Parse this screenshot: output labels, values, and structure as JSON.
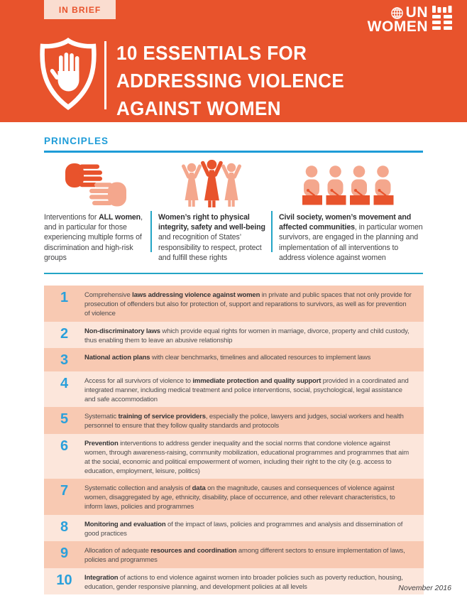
{
  "colors": {
    "orange": "#E8532C",
    "salmon": "#F4A78D",
    "tab_background": "#FADDD0",
    "row_dark": "#F8C9B2",
    "row_light": "#FCE6DB",
    "blue": "#1E9CD8",
    "teal": "#23A5C6",
    "body_text": "#4D4D4F"
  },
  "header": {
    "tab_label": "IN BRIEF",
    "title_lines": [
      "10 ESSENTIALS FOR",
      "ADDRESSING VIOLENCE",
      "AGAINST WOMEN"
    ],
    "logo_line1": "UN",
    "logo_line2": "WOMEN"
  },
  "principles": {
    "heading": "PRINCIPLES",
    "items": [
      {
        "icon": "hands-icon",
        "parts": [
          {
            "t": "Interventions for "
          },
          {
            "t": "ALL women",
            "b": true
          },
          {
            "t": ", and in particular for those experiencing multiple forms of discrimination and high-risk groups"
          }
        ]
      },
      {
        "icon": "raised-arms-icon",
        "parts": [
          {
            "t": "Women’s right to physical integrity, safety and well-being",
            "b": true
          },
          {
            "t": " and recognition of States’ responsibility to respect, protect and fulfill these rights"
          }
        ]
      },
      {
        "icon": "panel-icon",
        "parts": [
          {
            "t": "Civil society, women’s movement and affected communities",
            "b": true
          },
          {
            "t": ", in particular women survivors, are engaged in the planning and implementation of all interventions to address violence against women"
          }
        ]
      }
    ]
  },
  "essentials": [
    {
      "number": "1",
      "parts": [
        {
          "t": "Comprehensive "
        },
        {
          "t": "laws addressing violence against women",
          "b": true
        },
        {
          "t": " in private and public spaces that not only provide for prosecution of offenders but also for protection of, support and reparations to survivors, as well as for prevention of violence"
        }
      ]
    },
    {
      "number": "2",
      "parts": [
        {
          "t": "Non-discriminatory laws",
          "b": true
        },
        {
          "t": " which provide equal rights for women in marriage, divorce, property and child custody, thus enabling them to leave an abusive relationship"
        }
      ]
    },
    {
      "number": "3",
      "parts": [
        {
          "t": "National action plans",
          "b": true
        },
        {
          "t": " with clear benchmarks, timelines and allocated resources to implement laws"
        }
      ]
    },
    {
      "number": "4",
      "parts": [
        {
          "t": "Access for all survivors of violence to "
        },
        {
          "t": "immediate protection and quality support",
          "b": true
        },
        {
          "t": " provided in a coordinated and integrated manner, including medical treatment and police interventions, social, psychological, legal assistance and safe accommodation"
        }
      ]
    },
    {
      "number": "5",
      "parts": [
        {
          "t": "Systematic "
        },
        {
          "t": "training of service providers",
          "b": true
        },
        {
          "t": ", especially the police, lawyers and judges, social workers and health personnel to ensure that they follow quality standards and protocols"
        }
      ]
    },
    {
      "number": "6",
      "parts": [
        {
          "t": "Prevention",
          "b": true
        },
        {
          "t": " interventions to address gender inequality and the social norms that condone violence against women, through awareness-raising, community mobilization, educational programmes and programmes that aim at the social, economic and political empowerment of women, including their right to the city (e.g. access to education, employment, leisure, politics)"
        }
      ]
    },
    {
      "number": "7",
      "parts": [
        {
          "t": "Systematic collection and analysis of "
        },
        {
          "t": "data",
          "b": true
        },
        {
          "t": " on the magnitude, causes and consequences of violence against women, disaggregated by age, ethnicity, disability, place of occurrence, and other relevant characteristics, to inform laws, policies and programmes"
        }
      ]
    },
    {
      "number": "8",
      "parts": [
        {
          "t": "Monitoring and evaluation",
          "b": true
        },
        {
          "t": " of the impact of laws, policies and programmes and analysis and dissemination of good practices"
        }
      ]
    },
    {
      "number": "9",
      "parts": [
        {
          "t": "Allocation of adequate "
        },
        {
          "t": "resources and coordination",
          "b": true
        },
        {
          "t": " among different sectors to ensure implementation of laws, policies and programmes"
        }
      ]
    },
    {
      "number": "10",
      "parts": [
        {
          "t": "Integration",
          "b": true
        },
        {
          "t": " of actions to end violence against women into broader policies such as poverty reduction, housing, education, gender responsive planning, and development policies at all levels"
        }
      ]
    }
  ],
  "footer": {
    "date": "November 2016"
  }
}
